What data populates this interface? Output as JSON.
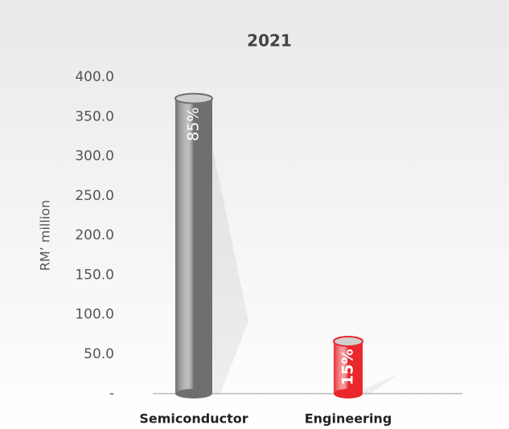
{
  "chart_data": {
    "type": "bar",
    "title": "2021",
    "y_label": "RM’ million",
    "categories": [
      "Semiconductor",
      "Engineering"
    ],
    "values": [
      373,
      66
    ],
    "colors": [
      "#6f6f71",
      "#e8282c"
    ],
    "annotations": [
      "85%",
      "15%"
    ],
    "ylim": [
      0,
      400
    ],
    "yticks": [
      {
        "value": 0,
        "label": "-"
      },
      {
        "value": 50,
        "label": "50.0"
      },
      {
        "value": 100,
        "label": "100.0"
      },
      {
        "value": 150,
        "label": "150.0"
      },
      {
        "value": 200,
        "label": "200.0"
      },
      {
        "value": 250,
        "label": "250.0"
      },
      {
        "value": 300,
        "label": "300.0"
      },
      {
        "value": 350,
        "label": "350.0"
      },
      {
        "value": 400,
        "label": "400.0"
      }
    ],
    "grid": false
  }
}
